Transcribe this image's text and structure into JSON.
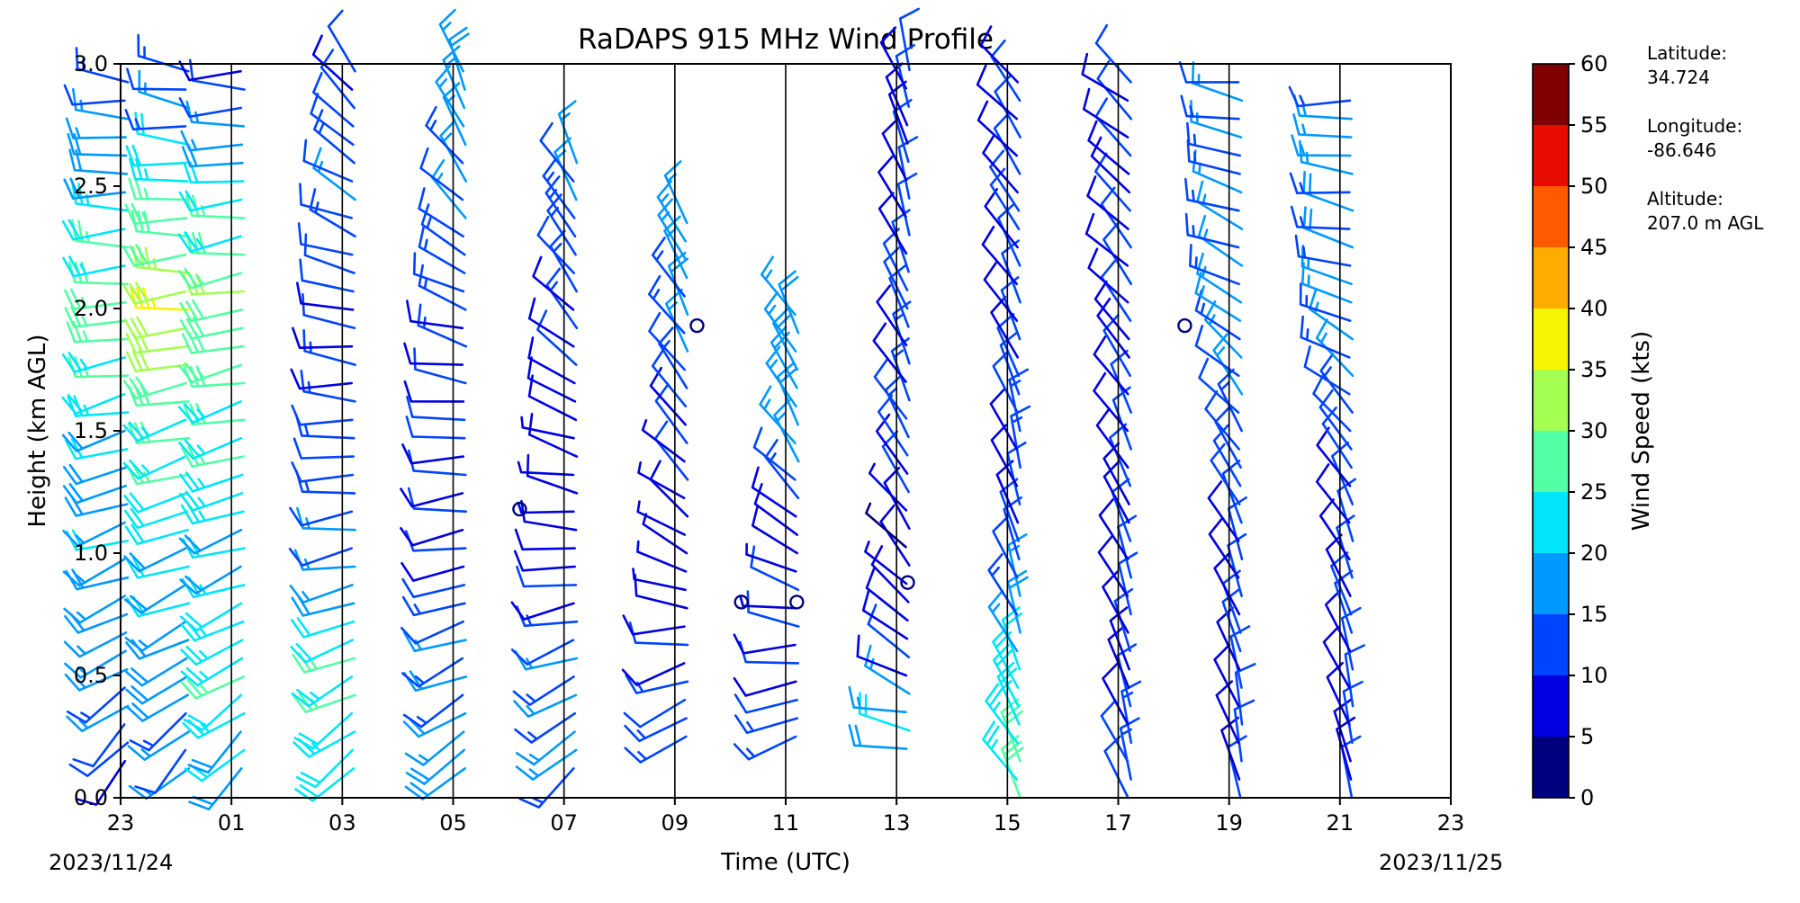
{
  "chart_data": {
    "type": "wind-barb-profile",
    "title": "RaDAPS 915 MHz Wind Profile",
    "xlabel": "Time (UTC)",
    "ylabel": "Height (km AGL)",
    "colorbar_label": "Wind Speed (kts)",
    "x_tick_labels": [
      "23",
      "01",
      "03",
      "05",
      "07",
      "09",
      "11",
      "13",
      "15",
      "17",
      "19",
      "21",
      "23"
    ],
    "x_hours_since_start": [
      0,
      2,
      4,
      6,
      8,
      10,
      12,
      14,
      16,
      18,
      20,
      22,
      24
    ],
    "xlim_hours": [
      0,
      24
    ],
    "start_date_label": "2023/11/24",
    "end_date_label": "2023/11/25",
    "y_tick_labels": [
      "0.0",
      "0.5",
      "1.0",
      "1.5",
      "2.0",
      "2.5",
      "3.0"
    ],
    "y_ticks": [
      0.0,
      0.5,
      1.0,
      1.5,
      2.0,
      2.5,
      3.0
    ],
    "ylim": [
      0.0,
      3.0
    ],
    "colorbar_ticks": [
      "0",
      "5",
      "10",
      "15",
      "20",
      "25",
      "30",
      "35",
      "40",
      "45",
      "50",
      "55",
      "60"
    ],
    "colorbar_levels": [
      0,
      5,
      10,
      15,
      20,
      25,
      30,
      35,
      40,
      45,
      50,
      55,
      60
    ],
    "colorbar_colors": [
      "#00007f",
      "#0000e0",
      "#0044ff",
      "#0099ff",
      "#00e5f7",
      "#52ffa4",
      "#a4ff52",
      "#f7f400",
      "#ffac00",
      "#ff5a00",
      "#e80b00",
      "#7f0000"
    ],
    "vertical_grid_lines_hours": [
      2,
      4,
      6,
      8,
      10,
      12,
      14,
      16,
      18,
      20,
      22
    ],
    "info": {
      "latitude_label": "Latitude:",
      "latitude_value": "34.724",
      "longitude_label": "Longitude:",
      "longitude_value": "-86.646",
      "altitude_label": "Altitude:",
      "altitude_value": "207.0 m AGL"
    },
    "profiles": [
      {
        "hour": 0.1,
        "bottom_km": 0.15,
        "top_km": 3.0,
        "heights_km": [
          0.2,
          0.5,
          1.0,
          1.5,
          2.0,
          2.5,
          2.9
        ],
        "speed_kts": [
          10,
          16,
          18,
          20,
          28,
          20,
          12
        ],
        "dir_deg": [
          220,
          240,
          250,
          255,
          265,
          270,
          275
        ]
      },
      {
        "hour": 1.2,
        "bottom_km": 0.12,
        "top_km": 3.0,
        "heights_km": [
          0.2,
          0.5,
          1.0,
          1.5,
          2.0,
          2.5,
          2.9
        ],
        "speed_kts": [
          14,
          18,
          20,
          26,
          34,
          24,
          12
        ],
        "dir_deg": [
          225,
          240,
          250,
          255,
          265,
          270,
          280
        ]
      },
      {
        "hour": 2.2,
        "bottom_km": 0.12,
        "top_km": 3.0,
        "heights_km": [
          0.2,
          0.5,
          1.0,
          1.5,
          2.0,
          2.5,
          2.9
        ],
        "speed_kts": [
          20,
          24,
          20,
          26,
          30,
          22,
          10
        ],
        "dir_deg": [
          225,
          240,
          250,
          255,
          260,
          265,
          270
        ]
      },
      {
        "hour": 4.2,
        "bottom_km": 0.12,
        "top_km": 3.0,
        "heights_km": [
          0.2,
          0.5,
          1.0,
          1.5,
          2.0,
          2.5,
          2.9
        ],
        "speed_kts": [
          22,
          26,
          14,
          12,
          10,
          14,
          10
        ],
        "dir_deg": [
          230,
          245,
          260,
          270,
          280,
          300,
          320
        ]
      },
      {
        "hour": 6.2,
        "bottom_km": 0.12,
        "top_km": 3.0,
        "heights_km": [
          0.2,
          0.5,
          1.0,
          1.5,
          2.0,
          2.5,
          2.9
        ],
        "speed_kts": [
          18,
          16,
          10,
          10,
          12,
          14,
          18
        ],
        "dir_deg": [
          230,
          245,
          260,
          270,
          290,
          320,
          340
        ]
      },
      {
        "hour": 8.2,
        "bottom_km": 0.12,
        "top_km": 2.6,
        "heights_km": [
          0.2,
          0.5,
          1.0,
          1.5,
          2.0,
          2.5
        ],
        "speed_kts": [
          16,
          14,
          8,
          8,
          12,
          14
        ],
        "dir_deg": [
          230,
          245,
          270,
          290,
          320,
          330
        ]
      },
      {
        "hour": 10.2,
        "bottom_km": 0.25,
        "top_km": 2.4,
        "heights_km": [
          0.3,
          0.5,
          1.0,
          1.5,
          2.0
        ],
        "speed_kts": [
          14,
          12,
          6,
          10,
          16
        ],
        "dir_deg": [
          240,
          250,
          300,
          320,
          330
        ]
      },
      {
        "hour": 12.2,
        "bottom_km": 0.25,
        "top_km": 2.0,
        "heights_km": [
          0.3,
          0.5,
          1.0,
          1.5
        ],
        "speed_kts": [
          14,
          10,
          8,
          18
        ],
        "dir_deg": [
          250,
          260,
          300,
          330
        ]
      },
      {
        "hour": 14.2,
        "bottom_km": 0.2,
        "top_km": 3.0,
        "heights_km": [
          0.3,
          0.5,
          1.0,
          1.5,
          2.5
        ],
        "speed_kts": [
          20,
          10,
          6,
          12,
          10
        ],
        "dir_deg": [
          280,
          300,
          320,
          330,
          340
        ]
      },
      {
        "hour": 16.2,
        "bottom_km": 0.0,
        "top_km": 3.0,
        "heights_km": [
          0.2,
          0.5,
          1.0,
          1.5,
          2.0,
          2.8
        ],
        "speed_kts": [
          26,
          20,
          10,
          12,
          10,
          10
        ],
        "dir_deg": [
          330,
          335,
          340,
          340,
          330,
          320
        ]
      },
      {
        "hour": 18.2,
        "bottom_km": 0.0,
        "top_km": 3.0,
        "heights_km": [
          0.2,
          0.5,
          1.0,
          1.5,
          2.0,
          2.8
        ],
        "speed_kts": [
          12,
          10,
          10,
          10,
          10,
          10
        ],
        "dir_deg": [
          340,
          340,
          335,
          330,
          320,
          310
        ]
      },
      {
        "hour": 20.2,
        "bottom_km": 0.0,
        "top_km": 3.0,
        "heights_km": [
          0.2,
          0.5,
          1.0,
          1.5,
          2.0,
          2.8
        ],
        "speed_kts": [
          10,
          10,
          10,
          12,
          16,
          14
        ],
        "dir_deg": [
          345,
          340,
          335,
          325,
          300,
          280
        ]
      },
      {
        "hour": 22.2,
        "bottom_km": 0.0,
        "top_km": 2.9,
        "heights_km": [
          0.2,
          0.5,
          1.0,
          1.5,
          2.0,
          2.8
        ],
        "speed_kts": [
          10,
          10,
          10,
          12,
          16,
          16
        ],
        "dir_deg": [
          345,
          340,
          335,
          320,
          290,
          270
        ]
      }
    ],
    "calm_markers": [
      {
        "hour": 7.2,
        "height_km": 1.18
      },
      {
        "hour": 10.4,
        "height_km": 1.93
      },
      {
        "hour": 11.2,
        "height_km": 0.8
      },
      {
        "hour": 12.2,
        "height_km": 0.8
      },
      {
        "hour": 14.2,
        "height_km": 0.88
      },
      {
        "hour": 19.2,
        "height_km": 1.93
      }
    ]
  }
}
